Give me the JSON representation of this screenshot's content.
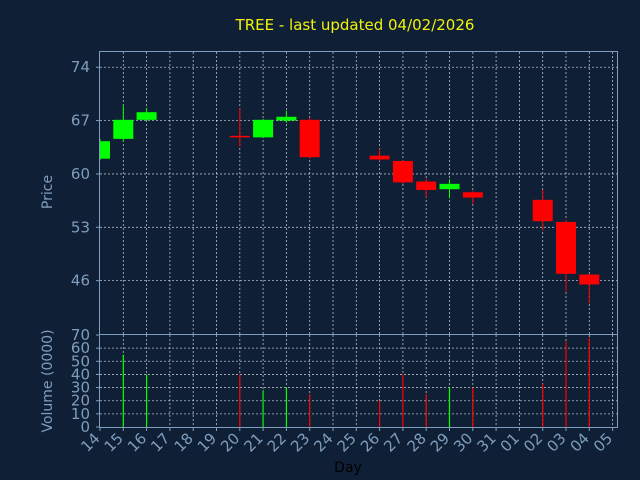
{
  "chart_data": {
    "type": "candlestick",
    "title": "TREE - last updated 04/02/2026",
    "xlabel": "Day",
    "ylabel_price": "Price",
    "ylabel_volume": "Volume (0000)",
    "x_tick_labels": [
      "14",
      "15",
      "16",
      "17",
      "18",
      "19",
      "20",
      "21",
      "22",
      "23",
      "24",
      "25",
      "26",
      "27",
      "28",
      "29",
      "30",
      "31",
      "01",
      "02",
      "03",
      "04",
      "05"
    ],
    "price_ticks": [
      74,
      67,
      60,
      53,
      46
    ],
    "volume_ticks": [
      0,
      10,
      20,
      30,
      40,
      50,
      60,
      70
    ],
    "price_ylim": [
      39,
      76
    ],
    "volume_ylim": [
      0,
      70
    ],
    "grid": true,
    "colors": {
      "up": "#00ff00",
      "down": "#ff0000",
      "grid": "#ffffff",
      "frame": "#7f9dbd",
      "background": "#0f2036",
      "title": "#f2f20a"
    },
    "candles": [
      {
        "day": "14",
        "open": 62.0,
        "close": 64.3,
        "high": 64.6,
        "low": 61.8,
        "volume": 0
      },
      {
        "day": "15",
        "open": 64.6,
        "close": 67.1,
        "high": 69.0,
        "low": 64.3,
        "volume": 55
      },
      {
        "day": "16",
        "open": 67.1,
        "close": 68.1,
        "high": 68.7,
        "low": 66.9,
        "volume": 40
      },
      {
        "day": "20",
        "open": 65.0,
        "close": 64.9,
        "high": 68.6,
        "low": 63.6,
        "volume": 40
      },
      {
        "day": "21",
        "open": 64.8,
        "close": 67.1,
        "high": 67.2,
        "low": 64.7,
        "volume": 28
      },
      {
        "day": "22",
        "open": 67.0,
        "close": 67.5,
        "high": 68.3,
        "low": 66.7,
        "volume": 30
      },
      {
        "day": "23",
        "open": 67.1,
        "close": 62.2,
        "high": 67.4,
        "low": 62.0,
        "volume": 25
      },
      {
        "day": "26",
        "open": 62.4,
        "close": 61.9,
        "high": 63.3,
        "low": 61.7,
        "volume": 20
      },
      {
        "day": "27",
        "open": 61.7,
        "close": 58.9,
        "high": 61.8,
        "low": 58.7,
        "volume": 40
      },
      {
        "day": "28",
        "open": 59.0,
        "close": 57.9,
        "high": 59.4,
        "low": 56.9,
        "volume": 25
      },
      {
        "day": "29",
        "open": 58.0,
        "close": 58.7,
        "high": 59.3,
        "low": 56.8,
        "volume": 30
      },
      {
        "day": "30",
        "open": 57.6,
        "close": 56.9,
        "high": 57.8,
        "low": 56.1,
        "volume": 30
      },
      {
        "day": "02",
        "open": 56.6,
        "close": 53.8,
        "high": 57.9,
        "low": 52.6,
        "volume": 33
      },
      {
        "day": "03",
        "open": 53.7,
        "close": 46.9,
        "high": 54.0,
        "low": 44.6,
        "volume": 65
      },
      {
        "day": "04",
        "open": 46.8,
        "close": 45.5,
        "high": 46.9,
        "low": 43.0,
        "volume": 68
      }
    ]
  }
}
